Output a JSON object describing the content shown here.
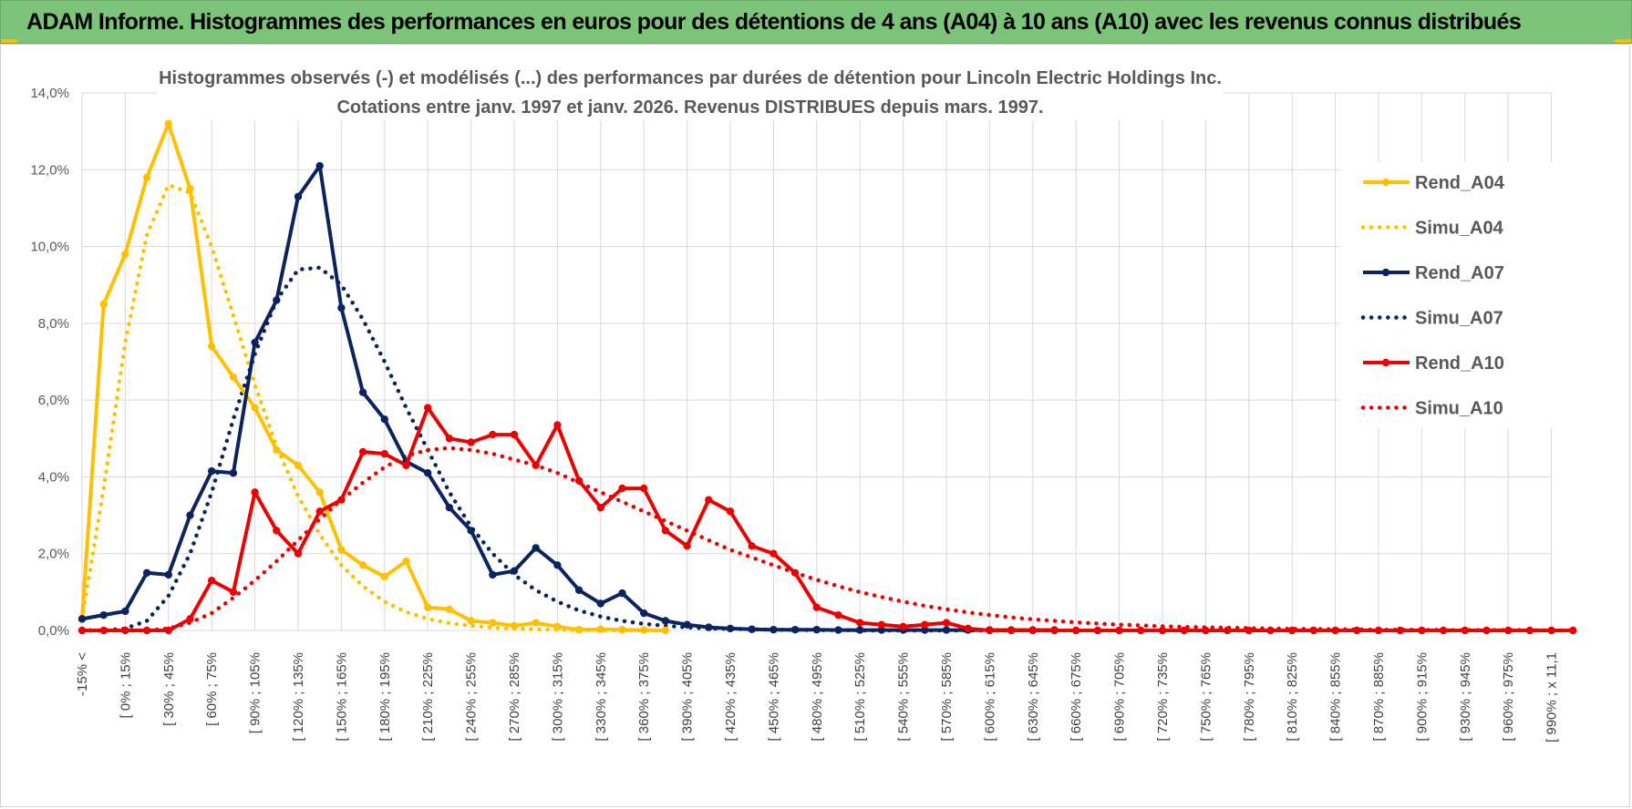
{
  "header": {
    "title": "ADAM Informe. Histogrammes des performances en euros pour des détentions de 4 ans (A04) à 10 ans (A10) avec les revenus connus distribués"
  },
  "colors": {
    "header_bg": "#7cc47a",
    "a04": "#FFC000",
    "a07": "#0B2460",
    "a10": "#EE0000",
    "grid": "#d9d9d9"
  },
  "chart_data": {
    "type": "line",
    "title_lines": [
      "Histogrammes observés (-) et modélisés (...) des performances par durées de détention pour Lincoln Electric Holdings Inc.",
      "Cotations entre janv. 1997 et janv. 2026. Revenus DISTRIBUES depuis mars. 1997."
    ],
    "y_ticks": [
      "0,0%",
      "2,0%",
      "4,0%",
      "6,0%",
      "8,0%",
      "10,0%",
      "12,0%",
      "14,0%"
    ],
    "ylim": [
      0,
      14
    ],
    "x_labels": [
      "-15% <",
      "[ 0% ; 15%",
      "[ 30% ; 45%",
      "[ 60% ; 75%",
      "[ 90% ; 105%",
      "[ 120% ; 135%",
      "[ 150% ; 165%",
      "[ 180% ; 195%",
      "[ 210% ; 225%",
      "[ 240% ; 255%",
      "[ 270% ; 285%",
      "[ 300% ; 315%",
      "[ 330% ; 345%",
      "[ 360% ; 375%",
      "[ 390% ; 405%",
      "[ 420% ; 435%",
      "[ 450% ; 465%",
      "[ 480% ; 495%",
      "[ 510% ; 525%",
      "[ 540% ; 555%",
      "[ 570% ; 585%",
      "[ 600% ; 615%",
      "[ 630% ; 645%",
      "[ 660% ; 675%",
      "[ 690% ; 705%",
      "[ 720% ; 735%",
      "[ 750% ; 765%",
      "[ 780% ; 795%",
      "[ 810% ; 825%",
      "[ 840% ; 855%",
      "[ 870% ; 885%",
      "[ 900% ; 915%",
      "[ 930% ; 945%",
      "[ 960% ; 975%",
      "[ 990% ; x 11,1"
    ],
    "legend_position": "right",
    "grid": true,
    "series": [
      {
        "name": "Rend_A04",
        "style": "solid",
        "color": "#FFC000",
        "markers": true,
        "values": [
          0.3,
          8.5,
          9.8,
          11.8,
          13.2,
          11.5,
          7.4,
          6.6,
          5.8,
          4.7,
          4.3,
          3.6,
          2.1,
          1.7,
          1.4,
          1.8,
          0.6,
          0.55,
          0.25,
          0.2,
          0.12,
          0.2,
          0.1,
          0.02,
          0.03,
          0.02,
          0.01,
          0.0
        ]
      },
      {
        "name": "Simu_A04",
        "style": "dotted",
        "color": "#FFC000",
        "markers": false,
        "values": [
          0.3,
          3.7,
          7.5,
          10.3,
          11.6,
          11.4,
          10.0,
          8.2,
          6.4,
          4.8,
          3.5,
          2.5,
          1.7,
          1.15,
          0.75,
          0.48,
          0.3,
          0.19,
          0.12,
          0.07,
          0.05,
          0.03,
          0.02,
          0.01,
          0.01,
          0.0,
          0.0,
          0.0
        ]
      },
      {
        "name": "Rend_A07",
        "style": "solid",
        "color": "#0B2460",
        "markers": true,
        "values": [
          0.3,
          0.4,
          0.5,
          1.5,
          1.45,
          3.0,
          4.15,
          4.1,
          7.5,
          8.6,
          11.3,
          12.1,
          8.4,
          6.2,
          5.5,
          4.4,
          4.1,
          3.2,
          2.6,
          1.45,
          1.55,
          2.15,
          1.7,
          1.05,
          0.7,
          0.97,
          0.45,
          0.25,
          0.15,
          0.08,
          0.05,
          0.03,
          0.02,
          0.02,
          0.02,
          0.01,
          0.01,
          0.01,
          0.01,
          0.01,
          0.01,
          0.01,
          0.01,
          0.01,
          0.01,
          0.01
        ]
      },
      {
        "name": "Simu_A07",
        "style": "dotted",
        "color": "#0B2460",
        "markers": false,
        "values": [
          0.0,
          0.0,
          0.05,
          0.25,
          0.9,
          2.0,
          3.6,
          5.5,
          7.2,
          8.6,
          9.4,
          9.45,
          9.0,
          8.1,
          7.0,
          5.8,
          4.7,
          3.6,
          2.7,
          2.0,
          1.45,
          1.05,
          0.75,
          0.52,
          0.36,
          0.25,
          0.17,
          0.12,
          0.08,
          0.05,
          0.04,
          0.03,
          0.02,
          0.015,
          0.01,
          0.01,
          0.0,
          0.0,
          0.0,
          0.0,
          0.0,
          0.0,
          0.0,
          0.0,
          0.0,
          0.0
        ]
      },
      {
        "name": "Rend_A10",
        "style": "solid",
        "color": "#EE0000",
        "markers": true,
        "values": [
          0.0,
          0.0,
          0.0,
          0.0,
          0.0,
          0.3,
          1.3,
          1.0,
          3.6,
          2.6,
          2.0,
          3.1,
          3.4,
          4.65,
          4.6,
          4.3,
          5.8,
          5.0,
          4.9,
          5.1,
          5.1,
          4.3,
          5.35,
          3.9,
          3.2,
          3.7,
          3.7,
          2.6,
          2.2,
          3.4,
          3.1,
          2.2,
          2.0,
          1.5,
          0.6,
          0.4,
          0.2,
          0.15,
          0.1,
          0.15,
          0.2,
          0.05,
          0.0,
          0.0,
          0.0,
          0.0,
          0.0,
          0.0,
          0.0,
          0.0,
          0.0,
          0.0,
          0.0,
          0.0,
          0.0,
          0.0,
          0.0,
          0.0,
          0.0,
          0.0,
          0.0,
          0.0,
          0.0,
          0.0,
          0.0,
          0.0,
          0.0,
          0.0,
          0.0,
          0.0
        ]
      },
      {
        "name": "Simu_A10",
        "style": "dotted",
        "color": "#EE0000",
        "markers": false,
        "values": [
          0.0,
          0.0,
          0.0,
          0.0,
          0.05,
          0.2,
          0.45,
          0.85,
          1.3,
          1.8,
          2.35,
          2.9,
          3.4,
          3.85,
          4.25,
          4.55,
          4.7,
          4.75,
          4.7,
          4.6,
          4.45,
          4.3,
          4.1,
          3.85,
          3.6,
          3.35,
          3.1,
          2.85,
          2.6,
          2.35,
          2.1,
          1.9,
          1.7,
          1.5,
          1.32,
          1.15,
          1.0,
          0.87,
          0.75,
          0.64,
          0.55,
          0.47,
          0.4,
          0.34,
          0.29,
          0.25,
          0.21,
          0.18,
          0.15,
          0.13,
          0.11,
          0.09,
          0.08,
          0.07,
          0.06,
          0.05,
          0.04,
          0.035,
          0.03,
          0.025,
          0.02,
          0.02,
          0.015,
          0.01,
          0.01,
          0.01,
          0.01,
          0.01,
          0.0,
          0.0
        ]
      }
    ]
  }
}
